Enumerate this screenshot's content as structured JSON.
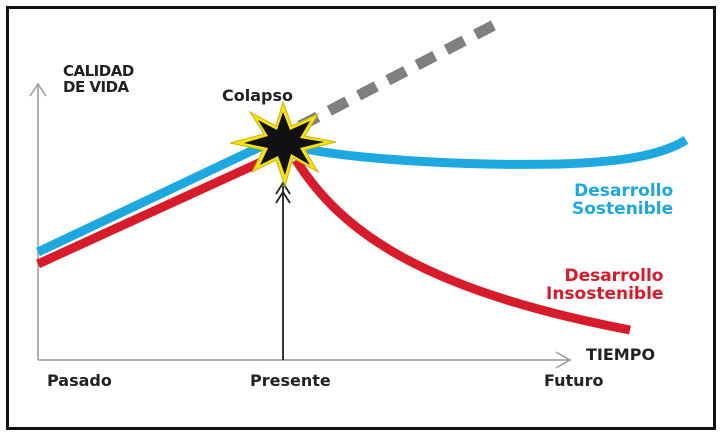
{
  "diagram": {
    "y_axis_label": [
      "CALIDAD",
      "DE VIDA"
    ],
    "x_axis_label": "TIEMPO",
    "collapse_label": "Colapso",
    "time_ticks": [
      "Pasado",
      "Presente",
      "Futuro"
    ],
    "paths": [
      {
        "label": [
          "Desarrollo",
          "Sostenible"
        ],
        "color": "#1ea8e0"
      },
      {
        "label": [
          "Desarrollo",
          "Insostenible"
        ],
        "color": "#d71b2a"
      }
    ],
    "projection_color": "#7f7f7f",
    "explosion_colors": {
      "outer": "#f3e21a",
      "inner": "#111111"
    }
  }
}
